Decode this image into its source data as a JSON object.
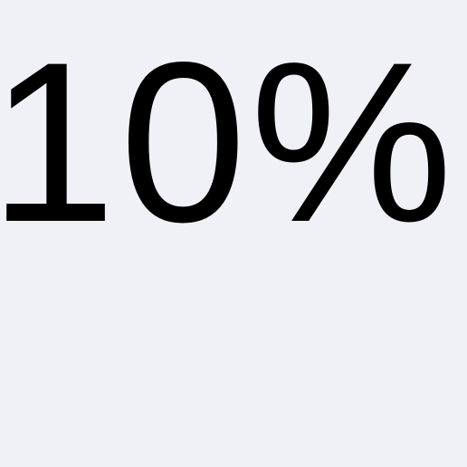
{
  "display": {
    "percent_text": "10%"
  },
  "colors": {
    "background": "#f0f1f6",
    "text": "#000000"
  }
}
